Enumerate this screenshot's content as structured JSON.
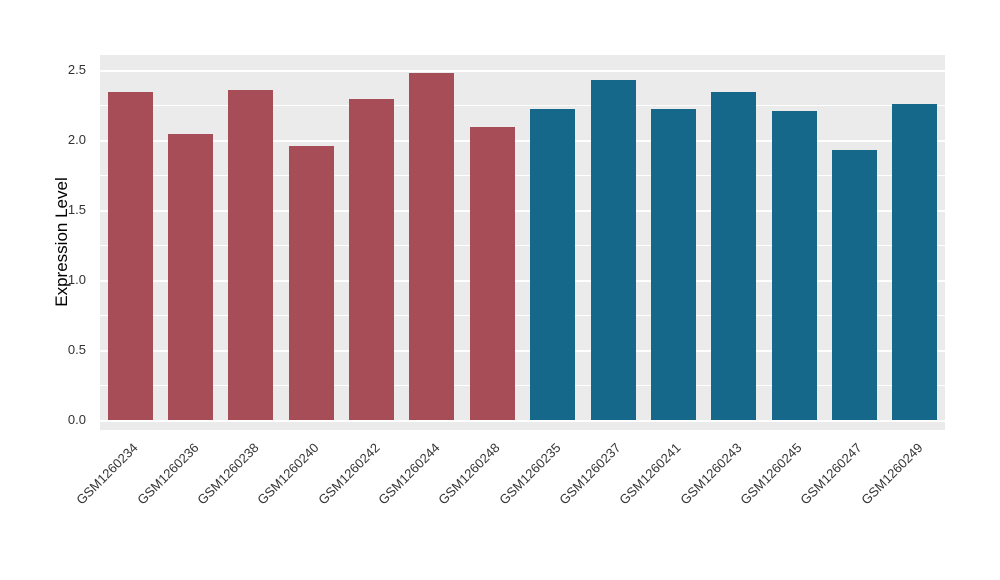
{
  "figure": {
    "background": "#FFFFFF",
    "panel_background": "#EBEBEB",
    "grid_color": "#FFFFFF",
    "axis_text_color": "#333333",
    "axis_title_color": "#000000"
  },
  "chart_data": {
    "type": "bar",
    "title": "",
    "xlabel": "",
    "ylabel": "Expression Level",
    "ylim": [
      0,
      2.5
    ],
    "grid": true,
    "legend": "none",
    "yticks": [
      0,
      0.5,
      1.0,
      1.5,
      2.0,
      2.5
    ],
    "ytick_labels": [
      "0.0",
      "0.5",
      "1.0",
      "1.5",
      "2.0",
      "2.5"
    ],
    "minor_ticks": [
      0.25,
      0.75,
      1.25,
      1.75,
      2.25
    ],
    "categories": [
      "GSM1260234",
      "GSM1260236",
      "GSM1260238",
      "GSM1260240",
      "GSM1260242",
      "GSM1260244",
      "GSM1260248",
      "GSM1260235",
      "GSM1260237",
      "GSM1260241",
      "GSM1260243",
      "GSM1260245",
      "GSM1260247",
      "GSM1260249"
    ],
    "values": [
      2.34,
      2.04,
      2.36,
      1.96,
      2.29,
      2.48,
      2.09,
      2.22,
      2.43,
      2.22,
      2.34,
      2.21,
      1.93,
      2.26
    ],
    "group_colors": {
      "left_group": "#A64D58",
      "right_group": "#16688A"
    },
    "bar_colors": [
      "#A64D58",
      "#A64D58",
      "#A64D58",
      "#A64D58",
      "#A64D58",
      "#A64D58",
      "#A64D58",
      "#16688A",
      "#16688A",
      "#16688A",
      "#16688A",
      "#16688A",
      "#16688A",
      "#16688A"
    ]
  }
}
